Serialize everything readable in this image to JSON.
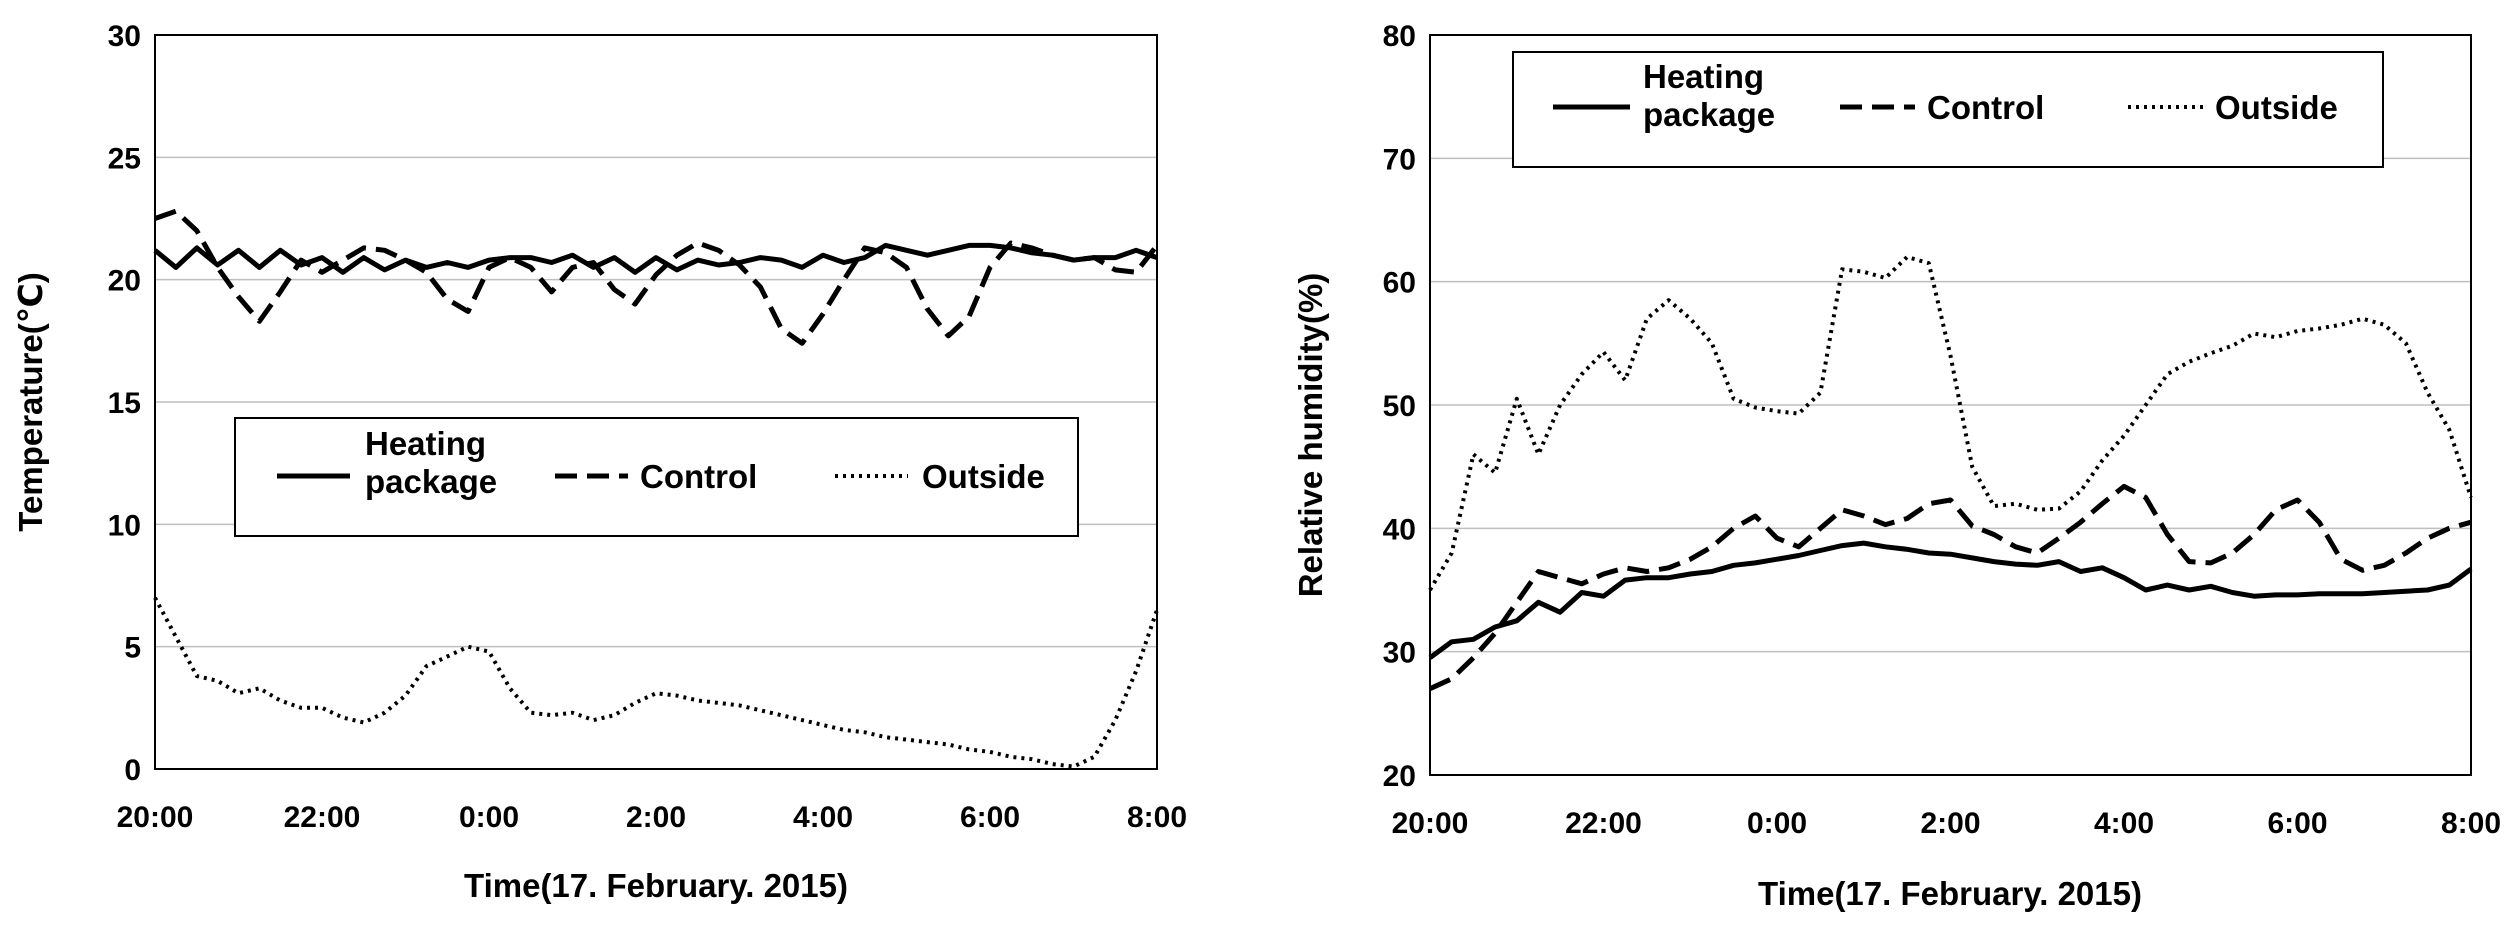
{
  "chart_data": [
    {
      "type": "line",
      "title": "",
      "xlabel": "Time(17. February. 2015)",
      "ylabel": "Temperature(℃)",
      "ylim": [
        0,
        30
      ],
      "yticks": [
        0,
        5,
        10,
        15,
        20,
        25,
        30
      ],
      "xlim": [
        0,
        12
      ],
      "xticks": [
        0,
        2,
        4,
        6,
        8,
        10,
        12
      ],
      "xtick_labels": [
        "20:00",
        "22:00",
        "0:00",
        "2:00",
        "4:00",
        "6:00",
        "8:00"
      ],
      "grid": "horizontal",
      "legend_position": "center-left",
      "colors": {
        "line": "#000000",
        "grid": "#bfbfbf"
      },
      "x": [
        0,
        0.25,
        0.5,
        0.75,
        1,
        1.25,
        1.5,
        1.75,
        2,
        2.25,
        2.5,
        2.75,
        3,
        3.25,
        3.5,
        3.75,
        4,
        4.25,
        4.5,
        4.75,
        5,
        5.25,
        5.5,
        5.75,
        6,
        6.25,
        6.5,
        6.75,
        7,
        7.25,
        7.5,
        7.75,
        8,
        8.25,
        8.5,
        8.75,
        9,
        9.25,
        9.5,
        9.75,
        10,
        10.25,
        10.5,
        10.75,
        11,
        11.25,
        11.5,
        11.75,
        12
      ],
      "series": [
        {
          "name": "Heating package",
          "style": "solid",
          "values": [
            21.2,
            20.5,
            21.3,
            20.6,
            21.2,
            20.5,
            21.2,
            20.6,
            20.9,
            20.3,
            20.9,
            20.4,
            20.8,
            20.5,
            20.7,
            20.5,
            20.8,
            20.9,
            20.9,
            20.7,
            21.0,
            20.5,
            20.9,
            20.3,
            20.9,
            20.4,
            20.8,
            20.6,
            20.7,
            20.9,
            20.8,
            20.5,
            21.0,
            20.7,
            20.9,
            21.4,
            21.2,
            21.0,
            21.2,
            21.4,
            21.4,
            21.3,
            21.1,
            21.0,
            20.8,
            20.9,
            20.9,
            21.2,
            20.9
          ]
        },
        {
          "name": "Control",
          "style": "dashed",
          "values": [
            22.5,
            22.8,
            22.0,
            20.5,
            19.3,
            18.3,
            19.5,
            20.8,
            20.3,
            20.8,
            21.3,
            21.2,
            20.8,
            20.3,
            19.2,
            18.7,
            20.5,
            20.9,
            20.5,
            19.5,
            20.5,
            20.7,
            19.6,
            19.0,
            20.2,
            21.0,
            21.5,
            21.2,
            20.6,
            19.7,
            18.0,
            17.4,
            18.6,
            20.0,
            21.3,
            21.1,
            20.5,
            18.8,
            17.7,
            18.5,
            20.5,
            21.5,
            21.3,
            21.0,
            20.8,
            20.9,
            20.4,
            20.3,
            21.4
          ]
        },
        {
          "name": "Outside",
          "style": "dotted",
          "values": [
            7.0,
            5.4,
            3.8,
            3.6,
            3.1,
            3.3,
            2.8,
            2.5,
            2.5,
            2.1,
            1.9,
            2.3,
            3.0,
            4.2,
            4.6,
            5.0,
            4.8,
            3.3,
            2.3,
            2.2,
            2.3,
            2.0,
            2.2,
            2.7,
            3.1,
            3.0,
            2.8,
            2.7,
            2.6,
            2.4,
            2.2,
            2.0,
            1.8,
            1.6,
            1.5,
            1.3,
            1.2,
            1.1,
            1.0,
            0.8,
            0.7,
            0.5,
            0.4,
            0.2,
            0.1,
            0.5,
            2.0,
            4.0,
            6.5
          ]
        }
      ]
    },
    {
      "type": "line",
      "title": "",
      "xlabel": "Time(17. February. 2015)",
      "ylabel": "Relative humidity(%)",
      "ylim": [
        20,
        80
      ],
      "yticks": [
        20,
        30,
        40,
        50,
        60,
        70,
        80
      ],
      "xlim": [
        0,
        12
      ],
      "xticks": [
        0,
        2,
        4,
        6,
        8,
        10,
        12
      ],
      "xtick_labels": [
        "20:00",
        "22:00",
        "0:00",
        "2:00",
        "4:00",
        "6:00",
        "8:00"
      ],
      "grid": "horizontal",
      "legend_position": "top",
      "colors": {
        "line": "#000000",
        "grid": "#bfbfbf"
      },
      "x": [
        0,
        0.25,
        0.5,
        0.75,
        1,
        1.25,
        1.5,
        1.75,
        2,
        2.25,
        2.5,
        2.75,
        3,
        3.25,
        3.5,
        3.75,
        4,
        4.25,
        4.5,
        4.75,
        5,
        5.25,
        5.5,
        5.75,
        6,
        6.25,
        6.5,
        6.75,
        7,
        7.25,
        7.5,
        7.75,
        8,
        8.25,
        8.5,
        8.75,
        9,
        9.25,
        9.5,
        9.75,
        10,
        10.25,
        10.5,
        10.75,
        11,
        11.25,
        11.5,
        11.75,
        12
      ],
      "series": [
        {
          "name": "Heating package",
          "style": "solid",
          "values": [
            29.5,
            30.8,
            31.0,
            32.0,
            32.5,
            34.0,
            33.2,
            34.8,
            34.5,
            35.8,
            36.0,
            36.0,
            36.3,
            36.5,
            37.0,
            37.2,
            37.5,
            37.8,
            38.2,
            38.6,
            38.8,
            38.5,
            38.3,
            38.0,
            37.9,
            37.6,
            37.3,
            37.1,
            37.0,
            37.3,
            36.5,
            36.8,
            36.0,
            35.0,
            35.4,
            35.0,
            35.3,
            34.8,
            34.5,
            34.6,
            34.6,
            34.7,
            34.7,
            34.7,
            34.8,
            34.9,
            35.0,
            35.4,
            36.7
          ]
        },
        {
          "name": "Control",
          "style": "dashed",
          "values": [
            27.0,
            27.8,
            29.5,
            31.5,
            34.0,
            36.5,
            36.0,
            35.5,
            36.3,
            36.8,
            36.5,
            36.8,
            37.5,
            38.5,
            40.0,
            41.0,
            39.2,
            38.5,
            40.0,
            41.5,
            41.0,
            40.3,
            40.8,
            42.0,
            42.3,
            40.2,
            39.5,
            38.5,
            38.0,
            39.2,
            40.5,
            42.0,
            43.4,
            42.5,
            39.5,
            37.3,
            37.2,
            38.0,
            39.5,
            41.5,
            42.3,
            40.5,
            37.5,
            36.6,
            37.0,
            38.0,
            39.2,
            40.0,
            40.5
          ]
        },
        {
          "name": "Outside",
          "style": "dotted",
          "values": [
            35.0,
            38.0,
            46.0,
            44.5,
            50.5,
            46.0,
            50.0,
            52.5,
            54.3,
            52.0,
            57.0,
            58.5,
            57.0,
            55.0,
            50.5,
            49.8,
            49.5,
            49.3,
            51.0,
            61.0,
            60.8,
            60.3,
            62.0,
            61.5,
            54.0,
            45.0,
            41.8,
            42.0,
            41.5,
            41.6,
            43.0,
            45.5,
            47.5,
            50.0,
            52.5,
            53.5,
            54.2,
            54.8,
            55.8,
            55.5,
            56.0,
            56.2,
            56.5,
            57.0,
            56.5,
            55.0,
            51.0,
            48.0,
            42.5
          ]
        }
      ]
    }
  ]
}
